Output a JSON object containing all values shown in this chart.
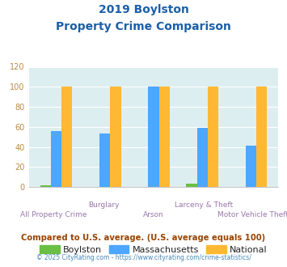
{
  "title_line1": "2019 Boylston",
  "title_line2": "Property Crime Comparison",
  "categories": [
    "All Property Crime",
    "Burglary",
    "Arson",
    "Larceny & Theft",
    "Motor Vehicle Theft"
  ],
  "boylston": [
    2,
    0,
    0,
    3,
    0
  ],
  "massachusetts": [
    56,
    53,
    100,
    59,
    41
  ],
  "national": [
    100,
    100,
    100,
    100,
    100
  ],
  "boylston_color": "#6abf45",
  "massachusetts_color": "#4da6ff",
  "national_color": "#ffb833",
  "ylim": [
    0,
    120
  ],
  "yticks": [
    0,
    20,
    40,
    60,
    80,
    100,
    120
  ],
  "bar_width": 0.22,
  "bg_color": "#ddeef0",
  "legend_labels": [
    "Boylston",
    "Massachusetts",
    "National"
  ],
  "footnote1": "Compared to U.S. average. (U.S. average equals 100)",
  "footnote2": "© 2025 CityRating.com - https://www.cityrating.com/crime-statistics/",
  "title_color": "#1a5fa8",
  "footnote1_color": "#994400",
  "footnote2_color": "#4488bb",
  "xlabel_upper_color": "#9977aa",
  "xlabel_lower_color": "#9977aa",
  "tick_color": "#bb8844",
  "grid_color": "#ffffff"
}
